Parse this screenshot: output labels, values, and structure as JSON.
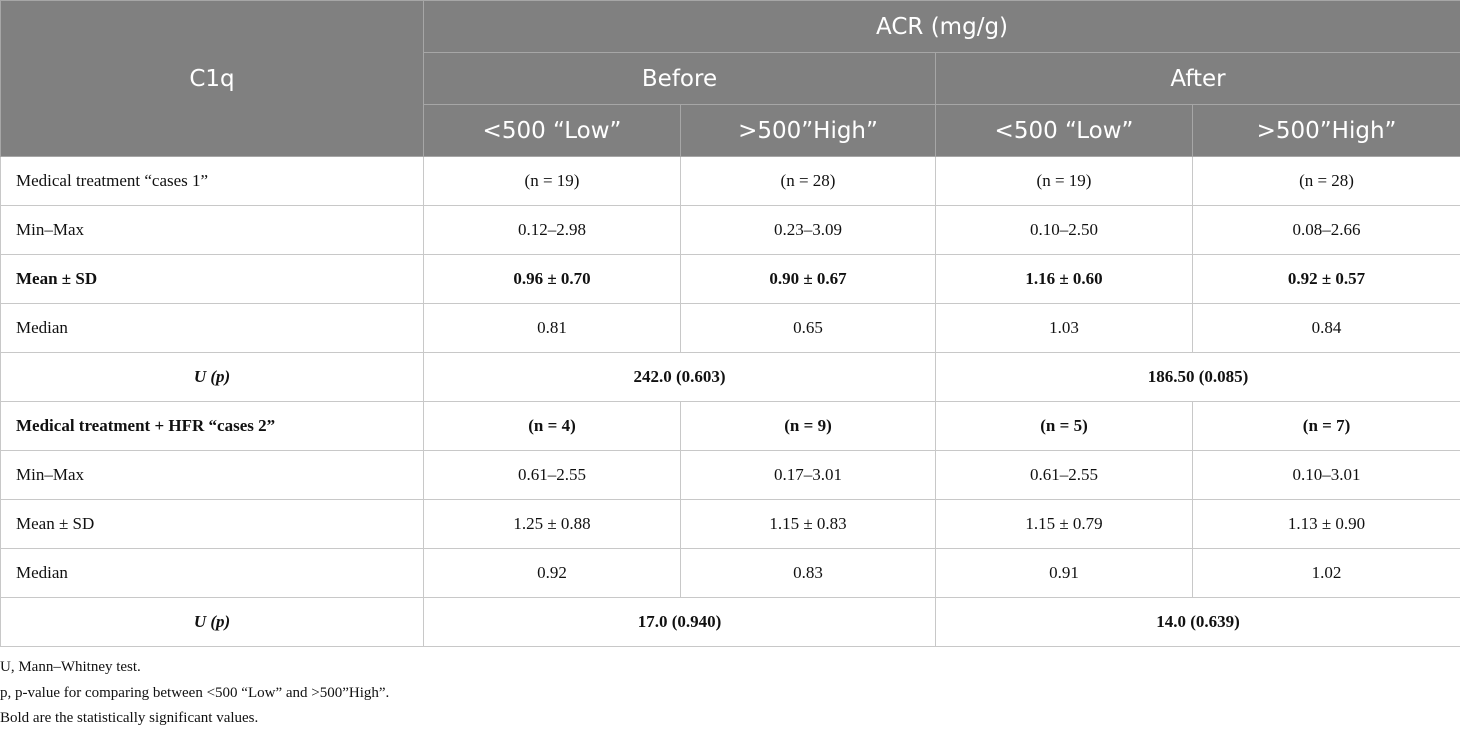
{
  "table": {
    "header": {
      "corner": "C1q",
      "group": "ACR (mg/g)",
      "periods": [
        "Before",
        "After"
      ],
      "levels": [
        "<500 “Low”",
        ">500”High”",
        "<500 “Low”",
        ">500”High”"
      ]
    },
    "rows": [
      {
        "label": "Medical treatment “cases 1”",
        "bold": false,
        "merged": false,
        "cells": [
          "(n = 19)",
          "(n = 28)",
          "(n = 19)",
          "(n = 28)"
        ]
      },
      {
        "label": "Min–Max",
        "bold": false,
        "merged": false,
        "cells": [
          "0.12–2.98",
          "0.23–3.09",
          "0.10–2.50",
          "0.08–2.66"
        ]
      },
      {
        "label": "Mean ± SD",
        "bold": true,
        "merged": false,
        "cells": [
          "0.96 ± 0.70",
          "0.90 ± 0.67",
          "1.16 ± 0.60",
          "0.92 ± 0.57"
        ]
      },
      {
        "label": "Median",
        "bold": false,
        "merged": false,
        "cells": [
          "0.81",
          "0.65",
          "1.03",
          "0.84"
        ]
      },
      {
        "label": "U (p)",
        "bold": true,
        "merged": true,
        "cells": [
          "242.0 (0.603)",
          "186.50 (0.085)"
        ]
      },
      {
        "label": "Medical treatment + HFR “cases 2”",
        "bold": true,
        "merged": false,
        "cells": [
          "(n = 4)",
          "(n = 9)",
          "(n = 5)",
          "(n = 7)"
        ]
      },
      {
        "label": "Min–Max",
        "bold": false,
        "merged": false,
        "cells": [
          "0.61–2.55",
          "0.17–3.01",
          "0.61–2.55",
          "0.10–3.01"
        ]
      },
      {
        "label": "Mean ± SD",
        "bold": false,
        "merged": false,
        "cells": [
          "1.25 ± 0.88",
          "1.15 ± 0.83",
          "1.15 ± 0.79",
          "1.13 ± 0.90"
        ]
      },
      {
        "label": "Median",
        "bold": false,
        "merged": false,
        "cells": [
          "0.92",
          "0.83",
          "0.91",
          "1.02"
        ]
      },
      {
        "label": "U (p)",
        "bold": true,
        "merged": true,
        "cells": [
          "17.0 (0.940)",
          "14.0 (0.639)"
        ]
      }
    ]
  },
  "footnotes": [
    "U, Mann–Whitney test.",
    "p, p-value for comparing between <500 “Low” and >500”High”.",
    "Bold are the statistically significant values."
  ]
}
